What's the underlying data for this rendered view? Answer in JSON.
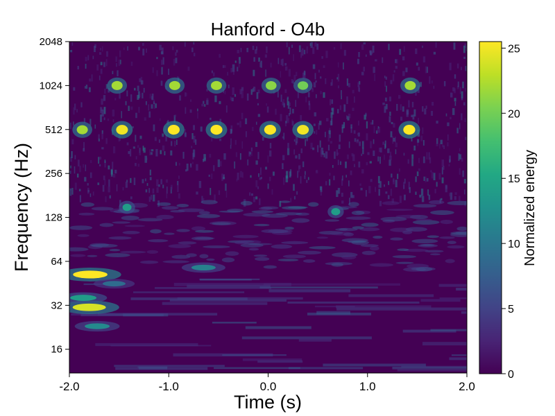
{
  "chart_data": {
    "type": "heatmap",
    "title": "Hanford - O4b",
    "xlabel": "Time (s)",
    "ylabel": "Frequency (Hz)",
    "xlim": [
      -2.0,
      2.0
    ],
    "ylim": [
      11,
      2048
    ],
    "yscale": "log",
    "x_ticks": [
      {
        "value": -2.0,
        "label": "-2.0"
      },
      {
        "value": -1.0,
        "label": "-1.0"
      },
      {
        "value": 0.0,
        "label": "0.0"
      },
      {
        "value": 1.0,
        "label": "1.0"
      },
      {
        "value": 2.0,
        "label": "2.0"
      }
    ],
    "y_ticks": [
      {
        "value": 16,
        "label": "16"
      },
      {
        "value": 32,
        "label": "32"
      },
      {
        "value": 64,
        "label": "64"
      },
      {
        "value": 128,
        "label": "128"
      },
      {
        "value": 256,
        "label": "256"
      },
      {
        "value": 512,
        "label": "512"
      },
      {
        "value": 1024,
        "label": "1024"
      },
      {
        "value": 2048,
        "label": "2048"
      }
    ],
    "colorbar": {
      "label": "Normalized energy",
      "range": [
        0,
        25.5
      ],
      "colormap": "viridis",
      "ticks": [
        {
          "value": 0,
          "label": "0"
        },
        {
          "value": 5,
          "label": "5"
        },
        {
          "value": 10,
          "label": "10"
        },
        {
          "value": 15,
          "label": "15"
        },
        {
          "value": 20,
          "label": "20"
        },
        {
          "value": 25,
          "label": "25"
        }
      ]
    },
    "hotspots": [
      {
        "t": -1.79,
        "f": 52,
        "energy": 25.5
      },
      {
        "t": -1.8,
        "f": 31,
        "energy": 24
      },
      {
        "t": -1.86,
        "f": 36,
        "energy": 14
      },
      {
        "t": -1.72,
        "f": 23,
        "energy": 12
      },
      {
        "t": -1.55,
        "f": 45,
        "energy": 9
      },
      {
        "t": -1.87,
        "f": 510,
        "energy": 22
      },
      {
        "t": -1.47,
        "f": 510,
        "energy": 25
      },
      {
        "t": -0.95,
        "f": 510,
        "energy": 25.5
      },
      {
        "t": -0.52,
        "f": 510,
        "energy": 25.5
      },
      {
        "t": 0.02,
        "f": 510,
        "energy": 25.5
      },
      {
        "t": 0.35,
        "f": 510,
        "energy": 25
      },
      {
        "t": 1.42,
        "f": 510,
        "energy": 25.5
      },
      {
        "t": -1.52,
        "f": 1024,
        "energy": 22
      },
      {
        "t": -0.94,
        "f": 1024,
        "energy": 22
      },
      {
        "t": -0.52,
        "f": 1024,
        "energy": 22
      },
      {
        "t": 0.03,
        "f": 1024,
        "energy": 21
      },
      {
        "t": 0.35,
        "f": 1024,
        "energy": 20
      },
      {
        "t": 1.43,
        "f": 1024,
        "energy": 22
      },
      {
        "t": -1.42,
        "f": 150,
        "energy": 14
      },
      {
        "t": 0.68,
        "f": 140,
        "energy": 14
      },
      {
        "t": -0.65,
        "f": 58,
        "energy": 11
      }
    ]
  }
}
